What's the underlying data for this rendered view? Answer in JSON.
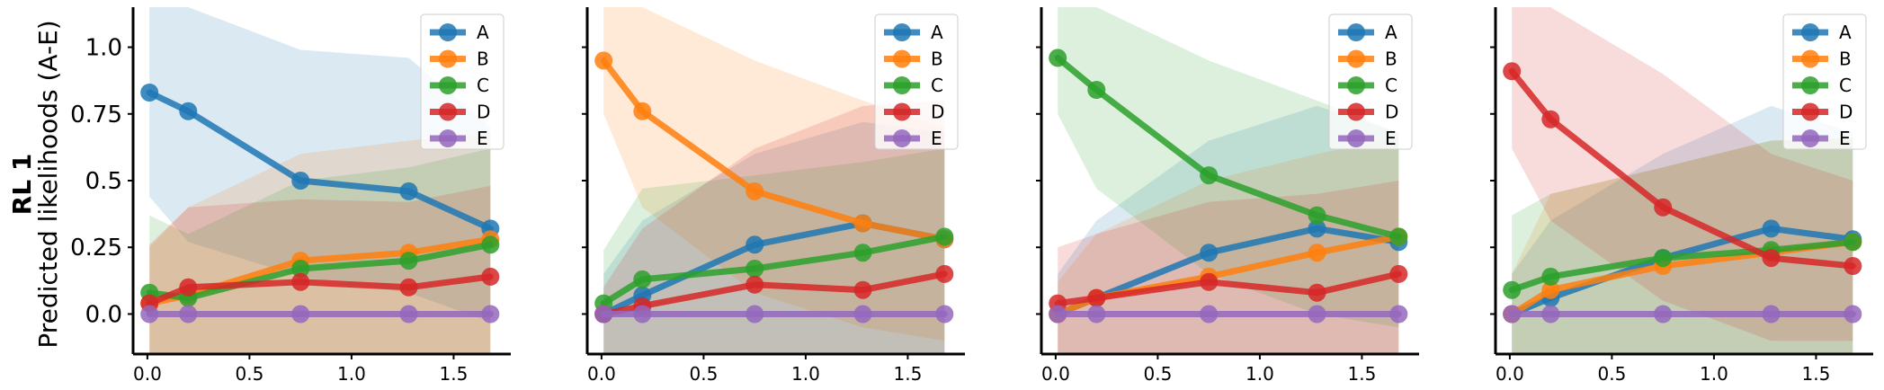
{
  "figure": {
    "row_label": "RL 1",
    "ylabel": "Predicted likelihoods (A-E)"
  },
  "series_colors": {
    "A": "#1f77b4",
    "B": "#ff7f0e",
    "C": "#2ca02c",
    "D": "#d62728",
    "E": "#9467bd"
  },
  "chart_data": [
    {
      "type": "line",
      "x": [
        0.01,
        0.2,
        0.75,
        1.28,
        1.68
      ],
      "xlim": [
        -0.07,
        1.78
      ],
      "ylim": [
        -0.15,
        1.15
      ],
      "xticks": [
        "0.0",
        "0.5",
        "1.0",
        "1.5"
      ],
      "yticks": [
        "0.0",
        "0.25",
        "0.5",
        "0.75",
        "1.0"
      ],
      "legend": "top-right",
      "series": [
        {
          "name": "A",
          "values": [
            0.83,
            0.76,
            0.5,
            0.46,
            0.32
          ],
          "lower": [
            0.44,
            0.27,
            0.14,
            0.08,
            -0.03
          ],
          "upper": [
            1.22,
            1.25,
            0.99,
            0.96,
            0.7
          ]
        },
        {
          "name": "B",
          "values": [
            0.04,
            0.07,
            0.2,
            0.23,
            0.28
          ],
          "lower": [
            -0.15,
            -0.15,
            -0.15,
            -0.15,
            -0.15
          ],
          "upper": [
            0.25,
            0.4,
            0.6,
            0.65,
            0.68
          ]
        },
        {
          "name": "C",
          "values": [
            0.08,
            0.06,
            0.17,
            0.2,
            0.26
          ],
          "lower": [
            -0.15,
            -0.15,
            -0.15,
            -0.15,
            -0.15
          ],
          "upper": [
            0.37,
            0.3,
            0.5,
            0.55,
            0.62
          ]
        },
        {
          "name": "D",
          "values": [
            0.04,
            0.1,
            0.12,
            0.1,
            0.14
          ],
          "lower": [
            -0.15,
            -0.15,
            -0.15,
            -0.15,
            -0.15
          ],
          "upper": [
            0.26,
            0.4,
            0.43,
            0.42,
            0.48
          ]
        },
        {
          "name": "E",
          "values": [
            0.0,
            0.0,
            0.0,
            0.0,
            0.0
          ],
          "lower": [
            0.0,
            0.0,
            0.0,
            0.0,
            0.0
          ],
          "upper": [
            0.0,
            0.0,
            0.0,
            0.0,
            0.0
          ]
        }
      ]
    },
    {
      "type": "line",
      "x": [
        0.01,
        0.2,
        0.75,
        1.28,
        1.68
      ],
      "xlim": [
        -0.07,
        1.78
      ],
      "ylim": [
        -0.15,
        1.15
      ],
      "xticks": [
        "0.0",
        "0.5",
        "1.0",
        "1.5"
      ],
      "yticks": [
        "0.0",
        "0.25",
        "0.5",
        "0.75",
        "1.0"
      ],
      "legend": "top-right",
      "series": [
        {
          "name": "A",
          "values": [
            0.0,
            0.07,
            0.26,
            0.34,
            0.28
          ],
          "lower": [
            -0.15,
            -0.15,
            -0.15,
            -0.15,
            -0.15
          ],
          "upper": [
            0.15,
            0.35,
            0.6,
            0.72,
            0.68
          ]
        },
        {
          "name": "B",
          "values": [
            0.95,
            0.76,
            0.46,
            0.34,
            0.28
          ],
          "lower": [
            0.75,
            0.4,
            0.08,
            -0.05,
            -0.1
          ],
          "upper": [
            1.15,
            1.15,
            0.95,
            0.8,
            0.7
          ]
        },
        {
          "name": "C",
          "values": [
            0.04,
            0.13,
            0.17,
            0.23,
            0.29
          ],
          "lower": [
            -0.15,
            -0.15,
            -0.15,
            -0.15,
            -0.15
          ],
          "upper": [
            0.24,
            0.47,
            0.52,
            0.57,
            0.62
          ]
        },
        {
          "name": "D",
          "values": [
            0.0,
            0.03,
            0.11,
            0.09,
            0.15
          ],
          "lower": [
            -0.15,
            -0.15,
            -0.15,
            -0.15,
            -0.15
          ],
          "upper": [
            0.1,
            0.32,
            0.62,
            0.78,
            0.8
          ]
        },
        {
          "name": "E",
          "values": [
            0.0,
            0.0,
            0.0,
            0.0,
            0.0
          ],
          "lower": [
            0.0,
            0.0,
            0.0,
            0.0,
            0.0
          ],
          "upper": [
            0.0,
            0.0,
            0.0,
            0.0,
            0.0
          ]
        }
      ]
    },
    {
      "type": "line",
      "x": [
        0.01,
        0.2,
        0.75,
        1.28,
        1.68
      ],
      "xlim": [
        -0.07,
        1.78
      ],
      "ylim": [
        -0.15,
        1.15
      ],
      "xticks": [
        "0.0",
        "0.5",
        "1.0",
        "1.5"
      ],
      "yticks": [
        "0.0",
        "0.25",
        "0.5",
        "0.75",
        "1.0"
      ],
      "legend": "top-right",
      "series": [
        {
          "name": "A",
          "values": [
            0.0,
            0.06,
            0.23,
            0.32,
            0.27
          ],
          "lower": [
            -0.15,
            -0.15,
            -0.15,
            -0.15,
            -0.15
          ],
          "upper": [
            0.15,
            0.35,
            0.65,
            0.78,
            0.68
          ]
        },
        {
          "name": "B",
          "values": [
            0.0,
            0.06,
            0.14,
            0.23,
            0.29
          ],
          "lower": [
            -0.15,
            -0.15,
            -0.15,
            -0.15,
            -0.15
          ],
          "upper": [
            0.12,
            0.3,
            0.5,
            0.6,
            0.66
          ]
        },
        {
          "name": "C",
          "values": [
            0.96,
            0.84,
            0.52,
            0.37,
            0.29
          ],
          "lower": [
            0.75,
            0.47,
            0.15,
            0.0,
            -0.05
          ],
          "upper": [
            1.15,
            1.15,
            0.95,
            0.8,
            0.68
          ]
        },
        {
          "name": "D",
          "values": [
            0.04,
            0.06,
            0.12,
            0.08,
            0.15
          ],
          "lower": [
            -0.15,
            -0.15,
            -0.15,
            -0.15,
            -0.15
          ],
          "upper": [
            0.25,
            0.3,
            0.42,
            0.45,
            0.5
          ]
        },
        {
          "name": "E",
          "values": [
            0.0,
            0.0,
            0.0,
            0.0,
            0.0
          ],
          "lower": [
            0.0,
            0.0,
            0.0,
            0.0,
            0.0
          ],
          "upper": [
            0.0,
            0.0,
            0.0,
            0.0,
            0.0
          ]
        }
      ]
    },
    {
      "type": "line",
      "x": [
        0.01,
        0.2,
        0.75,
        1.28,
        1.68
      ],
      "xlim": [
        -0.07,
        1.78
      ],
      "ylim": [
        -0.15,
        1.15
      ],
      "xticks": [
        "0.0",
        "0.5",
        "1.0",
        "1.5"
      ],
      "yticks": [
        "0.0",
        "0.25",
        "0.5",
        "0.75",
        "1.0"
      ],
      "legend": "top-right",
      "series": [
        {
          "name": "A",
          "values": [
            0.0,
            0.06,
            0.21,
            0.32,
            0.28
          ],
          "lower": [
            -0.15,
            -0.15,
            -0.15,
            -0.15,
            -0.15
          ],
          "upper": [
            0.15,
            0.35,
            0.6,
            0.78,
            0.68
          ]
        },
        {
          "name": "B",
          "values": [
            0.0,
            0.09,
            0.18,
            0.23,
            0.27
          ],
          "lower": [
            -0.15,
            -0.15,
            -0.15,
            -0.15,
            -0.15
          ],
          "upper": [
            0.15,
            0.45,
            0.55,
            0.65,
            0.66
          ]
        },
        {
          "name": "C",
          "values": [
            0.09,
            0.14,
            0.21,
            0.24,
            0.27
          ],
          "lower": [
            -0.15,
            -0.15,
            -0.15,
            -0.15,
            -0.15
          ],
          "upper": [
            0.37,
            0.45,
            0.55,
            0.65,
            0.66
          ]
        },
        {
          "name": "D",
          "values": [
            0.91,
            0.73,
            0.4,
            0.21,
            0.18
          ],
          "lower": [
            0.62,
            0.35,
            0.05,
            -0.1,
            -0.1
          ],
          "upper": [
            1.15,
            1.15,
            0.9,
            0.6,
            0.5
          ]
        },
        {
          "name": "E",
          "values": [
            0.0,
            0.0,
            0.0,
            0.0,
            0.0
          ],
          "lower": [
            0.0,
            0.0,
            0.0,
            0.0,
            0.0
          ],
          "upper": [
            0.0,
            0.0,
            0.0,
            0.0,
            0.0
          ]
        }
      ]
    }
  ]
}
